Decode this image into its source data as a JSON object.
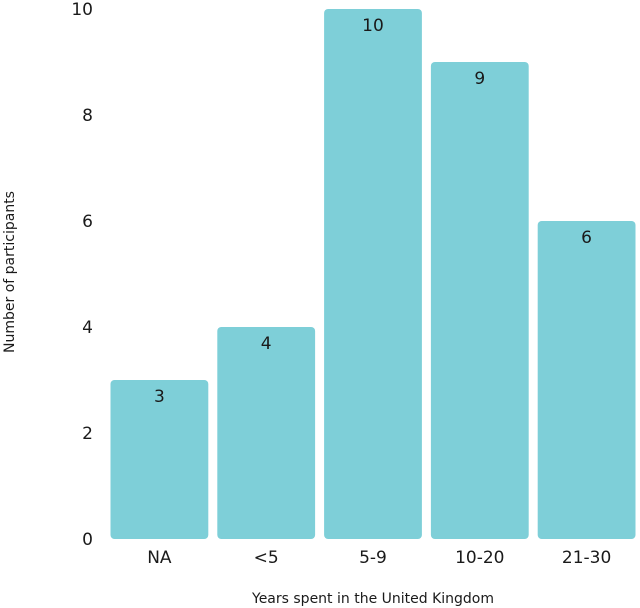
{
  "chart_data": {
    "type": "bar",
    "xlabel": "Years spent in the United Kingdom",
    "ylabel": "Number of participants",
    "categories": [
      "NA",
      "<5",
      "5-9",
      "10-20",
      "21-30"
    ],
    "values": [
      3,
      4,
      10,
      9,
      6
    ],
    "data_labels": [
      "3",
      "4",
      "10",
      "9",
      "6"
    ],
    "ylim": [
      0,
      10
    ],
    "yticks": [
      0,
      2,
      4,
      6,
      8,
      10
    ],
    "ytick_labels": [
      "0",
      "2",
      "4",
      "6",
      "8",
      "10"
    ],
    "grid": false,
    "bar_color": "#7ecfd8"
  }
}
